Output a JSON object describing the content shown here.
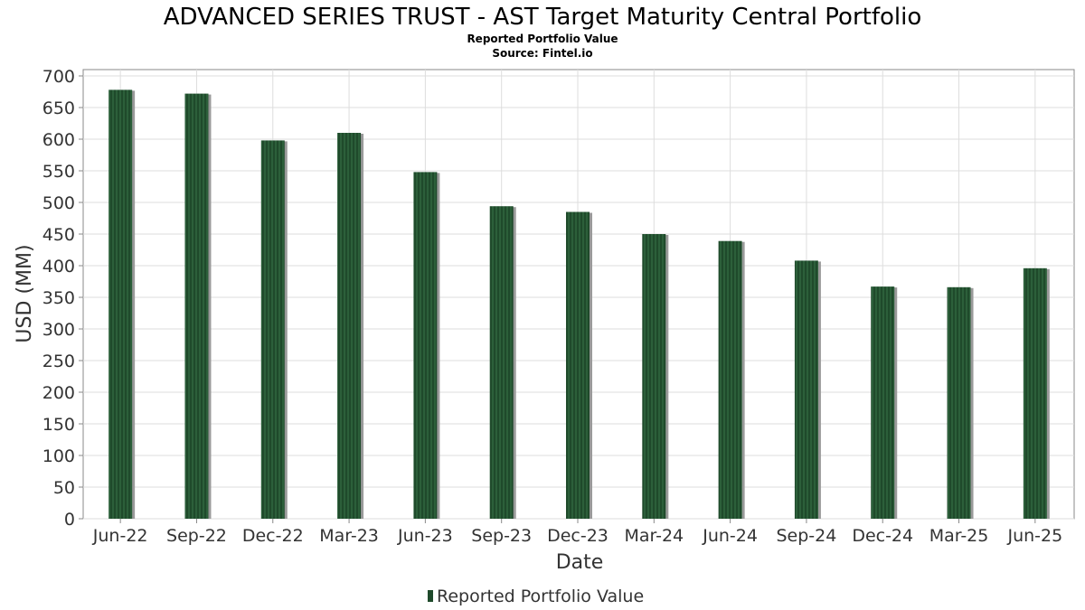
{
  "chart_data": {
    "type": "bar",
    "title": "ADVANCED SERIES TRUST - AST Target Maturity Central Portfolio",
    "subtitle": "Reported Portfolio Value",
    "source": "Source: Fintel.io",
    "xlabel": "Date",
    "ylabel": "USD (MM)",
    "categories": [
      "Jun-22",
      "Sep-22",
      "Dec-22",
      "Mar-23",
      "Jun-23",
      "Sep-23",
      "Dec-23",
      "Mar-24",
      "Jun-24",
      "Sep-24",
      "Dec-24",
      "Mar-25",
      "Jun-25"
    ],
    "series": [
      {
        "name": "Reported Portfolio Value",
        "values": [
          678,
          672,
          598,
          610,
          548,
          494,
          485,
          450,
          439,
          408,
          367,
          366,
          396
        ]
      }
    ],
    "ylim": [
      0,
      710
    ],
    "yticks": [
      0,
      50,
      100,
      150,
      200,
      250,
      300,
      350,
      400,
      450,
      500,
      550,
      600,
      650,
      700
    ],
    "grid": true,
    "legend_position": "bottom-center",
    "colors": {
      "bar": "#1f4a2b",
      "bar_stripe": "#2c5f3a",
      "bar_shadow": "#9a9a9a",
      "grid": "#dddddd",
      "axis": "#888888"
    }
  }
}
